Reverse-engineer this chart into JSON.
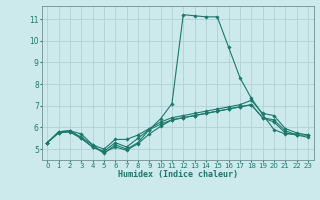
{
  "xlabel": "Humidex (Indice chaleur)",
  "x": [
    0,
    1,
    2,
    3,
    4,
    5,
    6,
    7,
    8,
    9,
    10,
    11,
    12,
    13,
    14,
    15,
    16,
    17,
    18,
    19,
    20,
    21,
    22,
    23
  ],
  "lines": [
    {
      "y": [
        5.3,
        5.8,
        5.85,
        5.7,
        5.2,
        4.8,
        5.2,
        5.0,
        5.3,
        5.9,
        6.4,
        7.1,
        11.2,
        11.15,
        11.1,
        11.1,
        9.7,
        8.3,
        7.35,
        6.6,
        5.9,
        5.7,
        5.7,
        null
      ]
    },
    {
      "y": [
        5.3,
        5.8,
        5.85,
        5.55,
        5.2,
        5.0,
        5.45,
        5.45,
        5.65,
        5.95,
        6.25,
        6.45,
        6.55,
        6.65,
        6.75,
        6.85,
        6.95,
        7.05,
        7.25,
        6.65,
        6.55,
        5.95,
        5.75,
        5.65
      ]
    },
    {
      "y": [
        5.3,
        5.75,
        5.8,
        5.5,
        5.1,
        4.9,
        5.3,
        5.1,
        5.5,
        5.9,
        6.15,
        6.35,
        6.45,
        6.55,
        6.65,
        6.75,
        6.85,
        6.95,
        7.05,
        6.45,
        6.35,
        5.85,
        5.65,
        5.65
      ]
    },
    {
      "y": [
        5.3,
        5.75,
        5.8,
        5.5,
        5.1,
        4.85,
        5.1,
        4.95,
        5.25,
        5.7,
        6.05,
        6.35,
        6.45,
        6.55,
        6.65,
        6.75,
        6.85,
        6.95,
        7.05,
        6.45,
        6.25,
        5.75,
        5.65,
        5.55
      ]
    }
  ],
  "ylim": [
    4.5,
    11.6
  ],
  "xlim": [
    -0.5,
    23.5
  ],
  "yticks": [
    5,
    6,
    7,
    8,
    9,
    10,
    11
  ],
  "xticks": [
    0,
    1,
    2,
    3,
    4,
    5,
    6,
    7,
    8,
    9,
    10,
    11,
    12,
    13,
    14,
    15,
    16,
    17,
    18,
    19,
    20,
    21,
    22,
    23
  ],
  "xtick_labels": [
    "0",
    "1",
    "2",
    "3",
    "4",
    "5",
    "6",
    "7",
    "8",
    "9",
    "10",
    "11",
    "12",
    "13",
    "14",
    "15",
    "16",
    "17",
    "18",
    "19",
    "20",
    "21",
    "22",
    "23"
  ],
  "bg_color": "#cce9ec",
  "grid_color": "#b0d0d4",
  "line_color": "#1a7a6a",
  "tick_fontsize": 5.0,
  "xlabel_fontsize": 6.0
}
